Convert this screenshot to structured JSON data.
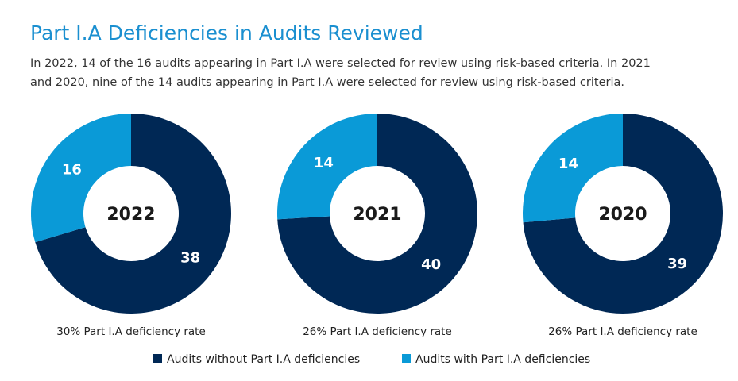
{
  "header": {
    "title": "Part I.A Deficiencies in Audits Reviewed",
    "subtitle": [
      "In 2022, 14 of the 16 audits appearing in Part I.A were selected for review using risk-based criteria. In 2021",
      "and 2020, nine of the 14 audits appearing in Part I.A were selected for review using risk-based criteria."
    ]
  },
  "chart_data": [
    {
      "type": "pie",
      "center_label": "2022",
      "caption": "30% Part I.A deficiency rate",
      "categories": [
        "Audits without Part I.A deficiencies",
        "Audits with Part I.A deficiencies"
      ],
      "values": [
        38,
        16
      ],
      "colors": [
        "#002855",
        "#0a9ad7"
      ]
    },
    {
      "type": "pie",
      "center_label": "2021",
      "caption": "26% Part I.A deficiency rate",
      "categories": [
        "Audits without Part I.A deficiencies",
        "Audits with Part I.A deficiencies"
      ],
      "values": [
        40,
        14
      ],
      "colors": [
        "#002855",
        "#0a9ad7"
      ]
    },
    {
      "type": "pie",
      "center_label": "2020",
      "caption": "26% Part I.A deficiency rate",
      "categories": [
        "Audits without Part I.A deficiencies",
        "Audits with Part I.A deficiencies"
      ],
      "values": [
        39,
        14
      ],
      "colors": [
        "#002855",
        "#0a9ad7"
      ]
    }
  ]
}
